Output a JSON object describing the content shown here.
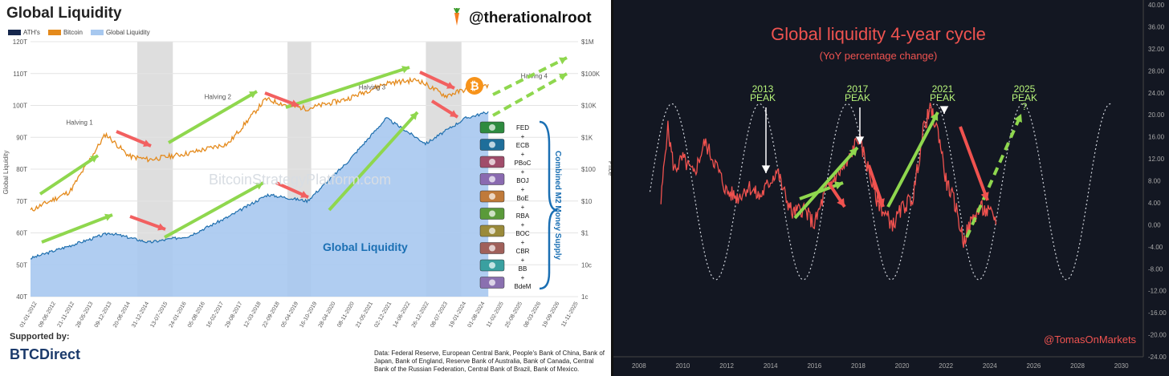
{
  "left": {
    "title": "Global Liquidity",
    "handle": "@therationalroot",
    "legend": [
      "ATH's",
      "Bitcoin",
      "Global Liquidity"
    ],
    "y_left_label": "Global Liquidity",
    "y_right_label": "Price",
    "y_left_ticks": [
      "120T",
      "110T",
      "100T",
      "90T",
      "80T",
      "70T",
      "60T",
      "50T",
      "40T"
    ],
    "y_right_ticks": [
      "$1M",
      "$100K",
      "$10K",
      "$1K",
      "$100",
      "$10",
      "$1",
      "10c",
      "1c"
    ],
    "halvings": [
      "Halving 1",
      "Halving 2",
      "Halving 3",
      "Halving 4"
    ],
    "watermark": "BitcoinStrategyPlatform.com",
    "area_label": "Global Liquidity",
    "central_banks": [
      "FED",
      "+",
      "ECB",
      "+",
      "PBoC",
      "+",
      "BOJ",
      "+",
      "BoE",
      "+",
      "RBA",
      "+",
      "BOC",
      "+",
      "CBR",
      "+",
      "BB",
      "+",
      "BdeM"
    ],
    "m2_label": "Combined M2 Money Supply",
    "supported_by": "Supported by:",
    "sponsor": "BTCDirect",
    "source": "Data: Federal Reserve, European Central Bank, People's Bank of China, Bank of Japan, Bank of England, Reserve Bank of Australia, Bank of Canada, Central Bank of the Russian Federation, Central Bank of Brazil, Bank of Mexico.",
    "x_ticks": [
      "01-01-2012",
      "09-06-2012",
      "21-11-2012",
      "28-05-2013",
      "09-12-2013",
      "20-06-2014",
      "31-12-2014",
      "13-07-2015",
      "24-01-2016",
      "05-08-2016",
      "16-02-2017",
      "29-08-2017",
      "12-03-2018",
      "22-09-2018",
      "05-04-2019",
      "16-10-2019",
      "28-04-2020",
      "08-11-2020",
      "21-05-2021",
      "02-12-2021",
      "14-06-2022",
      "26-12-2022",
      "08-07-2023",
      "19-01-2024",
      "01-08-2024",
      "11-02-2025",
      "25-08-2025",
      "08-03-2026",
      "19-09-2026",
      "11-11-2025"
    ]
  },
  "right": {
    "title": "Global liquidity 4-year cycle",
    "subtitle": "(YoY percentage change)",
    "peaks": [
      {
        "year": "2013",
        "label": "PEAK",
        "q": ""
      },
      {
        "year": "2017",
        "label": "PEAK",
        "q": ""
      },
      {
        "year": "2021",
        "label": "PEAK",
        "q": ""
      },
      {
        "year": "2025",
        "label": "PEAK",
        "q": "?"
      }
    ],
    "y_ticks": [
      "40.00",
      "36.00",
      "32.00",
      "28.00",
      "24.00",
      "20.00",
      "16.00",
      "12.00",
      "8.00",
      "4.00",
      "0.00",
      "-4.00",
      "-8.00",
      "-12.00",
      "-16.00",
      "-20.00",
      "-24.00"
    ],
    "x_ticks": [
      "2008",
      "2010",
      "2012",
      "2014",
      "2016",
      "2018",
      "2020",
      "2022",
      "2024",
      "2026",
      "2028",
      "2030"
    ],
    "handle": "@TomasOnMarkets"
  },
  "chart_data": [
    {
      "type": "area",
      "title": "Global Liquidity",
      "xlabel": "",
      "ylabel": "Global Liquidity",
      "ylim": [
        40,
        120
      ],
      "series": [
        {
          "name": "Global Liquidity",
          "x": [
            2012,
            2013,
            2014,
            2015,
            2016,
            2017,
            2018,
            2019,
            2020,
            2021,
            2022,
            2023,
            2023.6
          ],
          "values": [
            52,
            56,
            60,
            57,
            59,
            65,
            72,
            70,
            82,
            96,
            88,
            96,
            98
          ]
        },
        {
          "name": "Bitcoin",
          "x": [
            2012,
            2013,
            2013.9,
            2014.5,
            2015,
            2016,
            2017,
            2017.95,
            2018.5,
            2019,
            2020,
            2021,
            2021.8,
            2022.5,
            2023,
            2023.6
          ],
          "values": [
            67,
            73,
            91,
            84,
            83,
            85,
            88,
            102,
            100,
            99,
            102,
            107,
            108,
            103,
            105,
            106
          ]
        }
      ]
    },
    {
      "type": "line",
      "title": "Global liquidity 4-year cycle",
      "subtitle": "(YoY percentage change)",
      "ylim": [
        -24,
        40
      ],
      "series": [
        {
          "name": "",
          "x": [
            2009,
            2009.3,
            2009.6,
            2010,
            2010.5,
            2011,
            2011.5,
            2012,
            2012.5,
            2013,
            2013.5,
            2014,
            2014.3,
            2014.6,
            2015,
            2015.5,
            2016,
            2016.5,
            2017,
            2017.5,
            2018,
            2018.4,
            2018.8,
            2019.2,
            2019.6,
            2020,
            2020.5,
            2021,
            2021.3,
            2021.7,
            2022,
            2022.4,
            2022.8,
            2023.2,
            2023.6,
            2024,
            2024.3
          ],
          "values": [
            4,
            18,
            10,
            12,
            9,
            15,
            11,
            6,
            5,
            7,
            5,
            8,
            10,
            6,
            2,
            3,
            0,
            6,
            9,
            11,
            16,
            11,
            5,
            2,
            0,
            3,
            5,
            18,
            21,
            16,
            8,
            4,
            -3,
            1,
            3,
            2,
            1
          ]
        },
        {
          "name": "",
          "x": [
            2008.5,
            2009.5,
            2010.5,
            2011.5,
            2012.5,
            2013.5,
            2014.5,
            2015.5,
            2016.5,
            2017.5,
            2018.5,
            2019.5,
            2020.5,
            2021.5,
            2022.5,
            2023.5,
            2024.5,
            2025.5,
            2026.5,
            2027.5,
            2028.5,
            2029.5
          ],
          "values": [
            6,
            22,
            6,
            -10,
            6,
            22,
            6,
            -10,
            6,
            22,
            6,
            -10,
            6,
            22,
            6,
            -10,
            6,
            22,
            6,
            -10,
            6,
            22
          ]
        }
      ]
    }
  ]
}
